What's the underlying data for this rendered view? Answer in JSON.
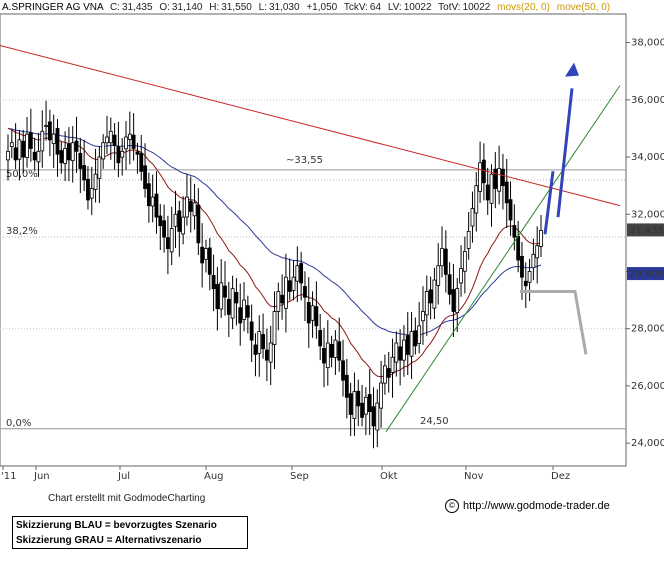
{
  "header": {
    "name": "A.SPRINGER AG VNA",
    "c_label": "C:",
    "c_value": "31,435",
    "o_label": "O:",
    "o_value": "31,140",
    "h_label": "H:",
    "h_value": "31,550",
    "l_label": "L:",
    "l_value": "31,030",
    "change": "+1,050",
    "tckv_label": "TckV:",
    "tckv_value": "64",
    "lv_label": "LV:",
    "lv_value": "10022",
    "totv_label": "TotV:",
    "totv_value": "10022",
    "mov20": "movs(20, 0)",
    "mov50": "move(50, 0)"
  },
  "colors": {
    "ema20": "#8b1a1a",
    "ema50": "#2b3a9a",
    "resistance": "#cc2222",
    "support": "#2e8b2e",
    "blue_scenario": "#3344bb",
    "grey_scenario": "#aaaaaa",
    "last_price_bg": "#444444",
    "ema50_bg": "#2b3a9a"
  },
  "chart_data": {
    "type": "candlestick",
    "y_axis": {
      "ticks": [
        "24,000",
        "26,000",
        "28,000",
        "30,000",
        "32,000",
        "34,000",
        "36,000",
        "38,000"
      ],
      "range": [
        23.2,
        39.0
      ],
      "position": "right"
    },
    "x_axis": {
      "ticks": [
        "'11",
        "Jun",
        "Jul",
        "Aug",
        "Sep",
        "Okt",
        "Nov",
        "Dez"
      ]
    },
    "last_price_label": "31,435",
    "ema50_label": "29,909",
    "fib_levels": [
      {
        "label": "0,0%",
        "value": 24.5
      },
      {
        "label": "38,2%",
        "value": 31.2
      },
      {
        "label": "50,0%",
        "value": 33.2
      }
    ],
    "horizontal_levels": [
      {
        "label": "~33,55",
        "value": 33.55
      },
      {
        "label": "24,50",
        "value": 24.5
      }
    ],
    "closes": [
      34.2,
      34.5,
      33.9,
      34.6,
      34.0,
      34.8,
      34.3,
      33.9,
      34.2,
      34.9,
      35.1,
      34.6,
      34.8,
      34.1,
      33.8,
      34.3,
      33.9,
      34.5,
      34.2,
      33.6,
      33.2,
      32.5,
      32.9,
      33.4,
      34.0,
      34.5,
      34.7,
      34.9,
      34.4,
      33.8,
      34.2,
      34.7,
      34.8,
      34.3,
      34.1,
      33.5,
      32.9,
      32.3,
      32.6,
      31.9,
      31.6,
      31.2,
      30.8,
      31.5,
      32.0,
      31.4,
      31.9,
      32.6,
      32.1,
      32.4,
      31.0,
      30.3,
      30.8,
      29.9,
      29.4,
      28.7,
      29.6,
      29.1,
      28.5,
      29.4,
      28.9,
      28.2,
      29.0,
      28.4,
      27.6,
      27.1,
      27.9,
      27.3,
      26.9,
      27.5,
      28.6,
      29.3,
      28.9,
      29.8,
      29.3,
      29.8,
      30.2,
      29.6,
      29.1,
      28.2,
      28.8,
      28.1,
      27.4,
      26.8,
      27.5,
      27.0,
      27.6,
      26.9,
      26.2,
      25.6,
      25.0,
      25.8,
      25.3,
      24.9,
      25.6,
      25.1,
      24.6,
      25.4,
      26.1,
      26.7,
      26.3,
      27.0,
      27.5,
      26.9,
      27.6,
      27.1,
      27.9,
      27.4,
      28.1,
      28.6,
      29.3,
      28.9,
      29.7,
      30.2,
      30.8,
      29.9,
      29.2,
      28.6,
      29.4,
      30.1,
      30.7,
      31.4,
      32.2,
      33.0,
      33.8,
      33.1,
      32.5,
      33.4,
      32.9,
      33.6,
      33.0,
      32.4,
      31.8,
      31.2,
      30.4,
      29.8,
      29.5,
      30.0,
      30.6,
      30.9,
      31.435
    ],
    "ema20": [],
    "ema50": []
  },
  "footer": {
    "credit": "Chart erstellt mit GodmodeCharting",
    "legend_blue": "Skizzierung BLAU = bevorzugtes Szenario",
    "legend_grey": "Skizzierung GRAU = Alternativszenario",
    "url": "http://www.godmode-trader.de",
    "copyright_icon": "copyright-icon",
    "copyright_glyph": "©"
  }
}
